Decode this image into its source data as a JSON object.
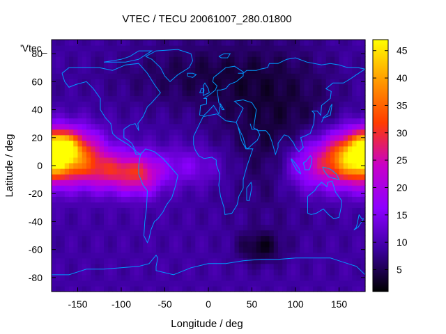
{
  "chart_data": {
    "type": "heatmap",
    "title": "VTEC / TECU 20061007_280.01800",
    "xlabel": "Longitude / deg",
    "ylabel": "Latitude / deg",
    "xlim": [
      -180,
      180
    ],
    "ylim": [
      -90,
      90
    ],
    "xticks": [
      -150,
      -100,
      -50,
      0,
      50,
      100,
      150
    ],
    "yticks": [
      -80,
      -60,
      -40,
      -20,
      0,
      20,
      40,
      60,
      80
    ],
    "colorbar": {
      "ticks": [
        5,
        10,
        15,
        20,
        25,
        30,
        35,
        40,
        45
      ],
      "range": [
        1,
        47
      ],
      "colormap": [
        "#000000",
        "#3c00a0",
        "#8c00ff",
        "#c800c8",
        "#ff3c00",
        "#ff9600",
        "#ffff00"
      ]
    },
    "legend_key": "'Vtec_",
    "grid": false,
    "background_level": 9,
    "blobs": [
      {
        "lon": -165,
        "lat": 10,
        "sx": 28,
        "sy": 12,
        "amp": 26
      },
      {
        "lon": -170,
        "lat": 14,
        "sx": 12,
        "sy": 6,
        "amp": 14
      },
      {
        "lon": -105,
        "lat": -4,
        "sx": 30,
        "sy": 10,
        "amp": 18
      },
      {
        "lon": -75,
        "lat": -8,
        "sx": 15,
        "sy": 10,
        "amp": 8
      },
      {
        "lon": 160,
        "lat": 3,
        "sx": 32,
        "sy": 13,
        "amp": 25
      },
      {
        "lon": 175,
        "lat": 10,
        "sx": 15,
        "sy": 10,
        "amp": 6
      },
      {
        "lon": 110,
        "lat": -2,
        "sx": 20,
        "sy": 14,
        "amp": 6
      },
      {
        "lon": -20,
        "lat": 0,
        "sx": 30,
        "sy": 10,
        "amp": 6
      },
      {
        "lon": 80,
        "lat": 25,
        "sx": 50,
        "sy": 40,
        "amp": -5
      },
      {
        "lon": 60,
        "lat": -58,
        "sx": 18,
        "sy": 8,
        "amp": -6
      },
      {
        "lon": -10,
        "lat": 65,
        "sx": 70,
        "sy": 18,
        "amp": -4
      }
    ]
  }
}
